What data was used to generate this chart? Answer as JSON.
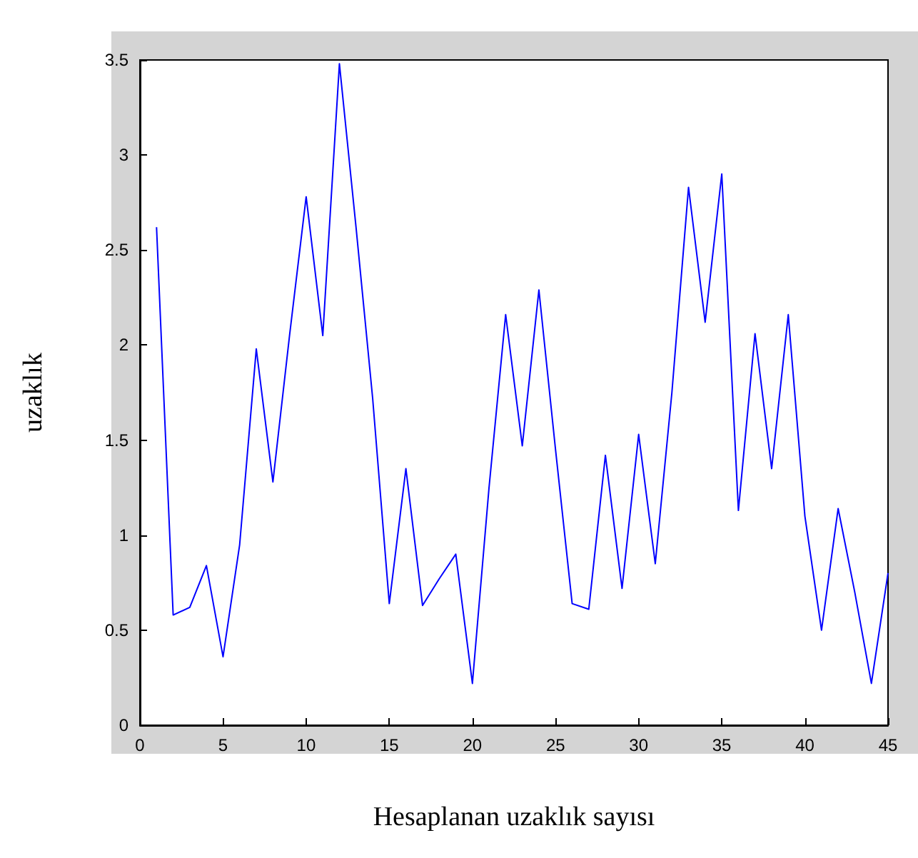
{
  "chart_data": {
    "type": "line",
    "xlabel": "Hesaplanan uzaklık sayısı",
    "ylabel": "uzaklık",
    "x": [
      1,
      2,
      3,
      4,
      5,
      6,
      7,
      8,
      9,
      10,
      11,
      12,
      13,
      14,
      15,
      16,
      17,
      18,
      19,
      20,
      21,
      22,
      23,
      24,
      25,
      26,
      27,
      28,
      29,
      30,
      31,
      32,
      33,
      34,
      35,
      36,
      37,
      38,
      39,
      40,
      41,
      42,
      43,
      44,
      45
    ],
    "series": [
      {
        "color": "#0000ff",
        "values": [
          2.62,
          0.58,
          0.62,
          0.84,
          0.36,
          0.95,
          1.98,
          1.28,
          2.05,
          2.78,
          2.05,
          3.48,
          2.62,
          1.72,
          0.64,
          1.35,
          0.63,
          0.77,
          0.9,
          0.22,
          1.25,
          2.16,
          1.47,
          2.29,
          1.45,
          0.64,
          0.61,
          1.42,
          0.72,
          1.53,
          0.85,
          1.75,
          2.83,
          2.12,
          2.9,
          1.13,
          2.06,
          1.35,
          2.16,
          1.1,
          0.5,
          1.14,
          0.7,
          0.22,
          0.8
        ]
      }
    ],
    "xlim": [
      0,
      45
    ],
    "xticks": [
      0,
      5,
      10,
      15,
      20,
      25,
      30,
      35,
      40,
      45
    ],
    "ylim": [
      0,
      3.5
    ],
    "yticks": [
      0,
      0.5,
      1,
      1.5,
      2,
      2.5,
      3,
      3.5
    ],
    "grid": false,
    "marker": "none",
    "line_style": "solid"
  }
}
